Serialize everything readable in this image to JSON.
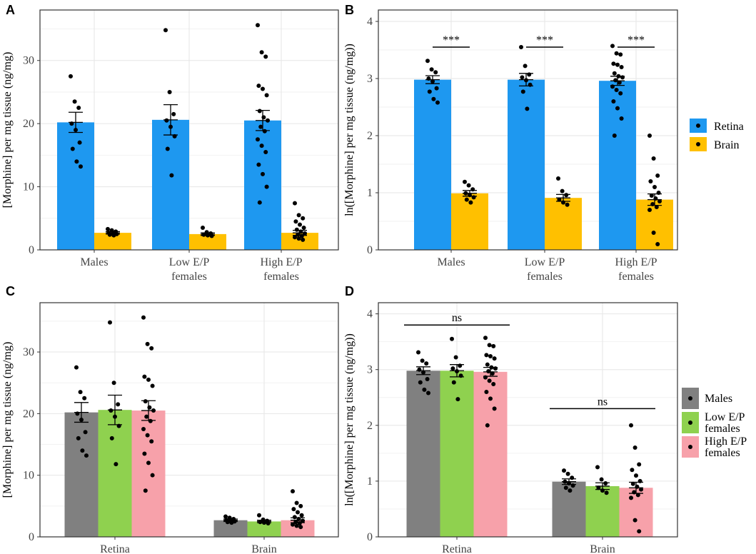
{
  "colors": {
    "retina": "#1E98F0",
    "brain": "#FFC000",
    "males": "#808080",
    "low": "#8FD14F",
    "high": "#F7A1AA"
  },
  "legend_top": [
    {
      "label": "Retina",
      "color": "#1E98F0"
    },
    {
      "label": "Brain",
      "color": "#FFC000"
    }
  ],
  "legend_bottom": [
    {
      "label": [
        "Males"
      ],
      "color": "#808080"
    },
    {
      "label": [
        "Low E/P",
        "females"
      ],
      "color": "#8FD14F"
    },
    {
      "label": [
        "High E/P",
        "females"
      ],
      "color": "#F7A1AA"
    }
  ],
  "chart_data": [
    {
      "panel": "A",
      "type": "bar",
      "ylabel": "[Morphine] per mg tissue (ng/mg)",
      "ylim": [
        0,
        38
      ],
      "yticks": [
        0,
        10,
        20,
        30
      ],
      "categories": [
        [
          "Males"
        ],
        [
          "Low E/P",
          "females"
        ],
        [
          "High E/P",
          "females"
        ]
      ],
      "series": [
        {
          "name": "Retina",
          "color": "#1E98F0",
          "values": [
            20.2,
            20.6,
            20.5
          ],
          "err": [
            1.6,
            2.4,
            1.6
          ],
          "points": [
            [
              27.5,
              23.5,
              22.5,
              20,
              19,
              17,
              16,
              14,
              13.2
            ],
            [
              34.8,
              25,
              21.5,
              20.5,
              19.5,
              18,
              16,
              11.8
            ],
            [
              35.6,
              31.3,
              30.6,
              26,
              25.5,
              24.5,
              22,
              21,
              20.5,
              19.5,
              18.8,
              17.5,
              16.5,
              15.5,
              13.5,
              12,
              10,
              7.5
            ]
          ]
        },
        {
          "name": "Brain",
          "color": "#FFC000",
          "values": [
            2.7,
            2.5,
            2.7
          ],
          "err": [
            0.2,
            0.2,
            0.4
          ],
          "points": [
            [
              3.3,
              3.1,
              2.9,
              2.7,
              2.6,
              2.5,
              2.4,
              2.3
            ],
            [
              3.5,
              2.8,
              2.6,
              2.4,
              2.3,
              2.2
            ],
            [
              7.4,
              5.5,
              5.0,
              4.5,
              4.0,
              3.5,
              3.2,
              2.9,
              2.6,
              2.4,
              2.2,
              2.0,
              1.8,
              1.6
            ]
          ]
        }
      ],
      "annotations": []
    },
    {
      "panel": "B",
      "type": "bar",
      "ylabel": "ln([Morphine] per mg tissue (ng/mg))",
      "ylim": [
        0,
        4.2
      ],
      "yticks": [
        0,
        1,
        2,
        3,
        4
      ],
      "categories": [
        [
          "Males"
        ],
        [
          "Low E/P",
          "females"
        ],
        [
          "High E/P",
          "females"
        ]
      ],
      "series": [
        {
          "name": "Retina",
          "color": "#1E98F0",
          "values": [
            2.98,
            2.98,
            2.96
          ],
          "err": [
            0.07,
            0.11,
            0.08
          ],
          "points": [
            [
              3.31,
              3.16,
              3.11,
              3.0,
              2.95,
              2.83,
              2.77,
              2.64,
              2.58
            ],
            [
              3.55,
              3.22,
              3.07,
              3.02,
              2.97,
              2.89,
              2.77,
              2.47
            ],
            [
              3.57,
              3.44,
              3.42,
              3.26,
              3.24,
              3.2,
              3.09,
              3.04,
              3.02,
              2.97,
              2.93,
              2.86,
              2.8,
              2.74,
              2.6,
              2.48,
              2.3,
              2.0
            ]
          ]
        },
        {
          "name": "Brain",
          "color": "#FFC000",
          "values": [
            0.99,
            0.91,
            0.88
          ],
          "err": [
            0.05,
            0.06,
            0.1
          ],
          "points": [
            [
              1.19,
              1.13,
              1.06,
              0.99,
              0.96,
              0.92,
              0.88,
              0.83
            ],
            [
              1.25,
              1.03,
              0.96,
              0.88,
              0.83,
              0.79
            ],
            [
              2.0,
              1.6,
              1.3,
              1.2,
              1.1,
              1.0,
              0.95,
              0.9,
              0.85,
              0.8,
              0.75,
              0.7,
              0.3,
              0.1
            ]
          ]
        }
      ],
      "annotations": [
        {
          "label": "***",
          "group": 0,
          "y": 3.55
        },
        {
          "label": "***",
          "group": 1,
          "y": 3.55
        },
        {
          "label": "***",
          "group": 2,
          "y": 3.55
        }
      ]
    },
    {
      "panel": "C",
      "type": "bar",
      "ylabel": "[Morphine] per mg tissue (ng/mg)",
      "ylim": [
        0,
        38
      ],
      "yticks": [
        0,
        10,
        20,
        30
      ],
      "categories": [
        [
          "Retina"
        ],
        [
          "Brain"
        ]
      ],
      "series": [
        {
          "name": "Males",
          "color": "#808080",
          "values": [
            20.2,
            2.7
          ],
          "err": [
            1.6,
            0.2
          ],
          "points": [
            [
              27.5,
              23.5,
              22.5,
              20,
              19,
              17,
              16,
              14,
              13.2
            ],
            [
              3.3,
              3.1,
              2.9,
              2.7,
              2.6,
              2.5,
              2.4,
              2.3
            ]
          ]
        },
        {
          "name": "Low E/P females",
          "color": "#8FD14F",
          "values": [
            20.6,
            2.5
          ],
          "err": [
            2.4,
            0.2
          ],
          "points": [
            [
              34.8,
              25,
              21.5,
              20.5,
              19.5,
              18,
              16,
              11.8
            ],
            [
              3.5,
              2.8,
              2.6,
              2.4,
              2.3,
              2.2
            ]
          ]
        },
        {
          "name": "High E/P females",
          "color": "#F7A1AA",
          "values": [
            20.5,
            2.7
          ],
          "err": [
            1.6,
            0.4
          ],
          "points": [
            [
              35.6,
              31.3,
              30.6,
              26,
              25.5,
              24.5,
              22,
              21,
              20.5,
              19.5,
              18.8,
              17.5,
              16.5,
              15.5,
              13.5,
              12,
              10,
              7.5
            ],
            [
              7.4,
              5.5,
              5.0,
              4.5,
              4.0,
              3.5,
              3.2,
              2.9,
              2.6,
              2.4,
              2.2,
              2.0,
              1.8,
              1.6
            ]
          ]
        }
      ],
      "annotations": []
    },
    {
      "panel": "D",
      "type": "bar",
      "ylabel": "ln([Morphine] per mg tissue (ng/mg))",
      "ylim": [
        0,
        4.2
      ],
      "yticks": [
        0,
        1,
        2,
        3,
        4
      ],
      "categories": [
        [
          "Retina"
        ],
        [
          "Brain"
        ]
      ],
      "series": [
        {
          "name": "Males",
          "color": "#808080",
          "values": [
            2.98,
            0.99
          ],
          "err": [
            0.07,
            0.05
          ],
          "points": [
            [
              3.31,
              3.16,
              3.11,
              3.0,
              2.95,
              2.83,
              2.77,
              2.64,
              2.58
            ],
            [
              1.19,
              1.13,
              1.06,
              0.99,
              0.96,
              0.92,
              0.88,
              0.83
            ]
          ]
        },
        {
          "name": "Low E/P females",
          "color": "#8FD14F",
          "values": [
            2.98,
            0.91
          ],
          "err": [
            0.11,
            0.06
          ],
          "points": [
            [
              3.55,
              3.22,
              3.07,
              3.02,
              2.97,
              2.89,
              2.77,
              2.47
            ],
            [
              1.25,
              1.03,
              0.96,
              0.88,
              0.83,
              0.79
            ]
          ]
        },
        {
          "name": "High E/P females",
          "color": "#F7A1AA",
          "values": [
            2.96,
            0.88
          ],
          "err": [
            0.08,
            0.1
          ],
          "points": [
            [
              3.57,
              3.44,
              3.42,
              3.26,
              3.24,
              3.2,
              3.09,
              3.04,
              3.02,
              2.97,
              2.93,
              2.86,
              2.8,
              2.74,
              2.6,
              2.48,
              2.3,
              2.0
            ],
            [
              2.0,
              1.6,
              1.3,
              1.2,
              1.1,
              1.0,
              0.95,
              0.9,
              0.85,
              0.8,
              0.75,
              0.7,
              0.3,
              0.1
            ]
          ]
        }
      ],
      "annotations": [
        {
          "label": "ns",
          "group": 0,
          "y": 3.8
        },
        {
          "label": "ns",
          "group": 1,
          "y": 2.3
        }
      ]
    }
  ]
}
